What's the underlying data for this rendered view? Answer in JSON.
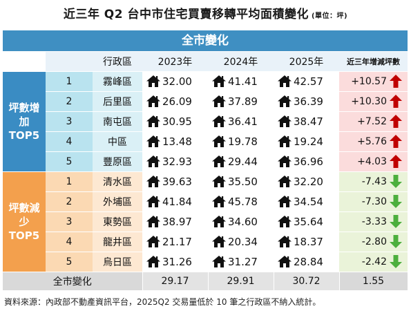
{
  "title": "近三年 Q2 台中市住宅買賣移轉平均面積變化",
  "unit": "(單位：坪)",
  "banner": "全市變化",
  "headers": {
    "district": "行政區",
    "y2023": "2023年",
    "y2024": "2024年",
    "y2025": "2025年",
    "change": "近三年增減坪數"
  },
  "groups": {
    "increase": [
      "坪數增",
      "加",
      "TOP5"
    ],
    "decrease": [
      "坪數減",
      "少",
      "TOP5"
    ]
  },
  "increase_rows": [
    {
      "rank": "1",
      "district": "霧峰區",
      "v2023": "32.00",
      "v2024": "41.41",
      "v2025": "42.57",
      "change": "+10.57"
    },
    {
      "rank": "2",
      "district": "后里區",
      "v2023": "26.09",
      "v2024": "37.89",
      "v2025": "36.39",
      "change": "+10.30"
    },
    {
      "rank": "3",
      "district": "南屯區",
      "v2023": "30.95",
      "v2024": "36.41",
      "v2025": "38.47",
      "change": "+7.52"
    },
    {
      "rank": "4",
      "district": "中區",
      "v2023": "13.48",
      "v2024": "19.78",
      "v2025": "19.24",
      "change": "+5.76"
    },
    {
      "rank": "5",
      "district": "豐原區",
      "v2023": "32.93",
      "v2024": "29.44",
      "v2025": "36.96",
      "change": "+4.03"
    }
  ],
  "decrease_rows": [
    {
      "rank": "1",
      "district": "清水區",
      "v2023": "39.63",
      "v2024": "35.50",
      "v2025": "32.20",
      "change": "-7.43"
    },
    {
      "rank": "2",
      "district": "外埔區",
      "v2023": "41.84",
      "v2024": "45.78",
      "v2025": "34.54",
      "change": "-7.30"
    },
    {
      "rank": "3",
      "district": "東勢區",
      "v2023": "38.97",
      "v2024": "34.60",
      "v2025": "35.64",
      "change": "-3.33"
    },
    {
      "rank": "4",
      "district": "龍井區",
      "v2023": "21.17",
      "v2024": "20.34",
      "v2025": "18.37",
      "change": "-2.80"
    },
    {
      "rank": "5",
      "district": "烏日區",
      "v2023": "31.26",
      "v2024": "31.27",
      "v2025": "28.84",
      "change": "-2.42"
    }
  ],
  "total": {
    "label": "全市變化",
    "v2023": "29.17",
    "v2024": "29.91",
    "v2025": "30.72",
    "change": "1.55"
  },
  "footer": "資料來源：內政部不動產資訊平台，2025Q2 交易量低於 10 筆之行政區不納入統計。",
  "colors": {
    "increase": "#3a8cc3",
    "decrease": "#f3a04d",
    "up_arrow": "#c00000",
    "down_arrow": "#4caf3d"
  }
}
